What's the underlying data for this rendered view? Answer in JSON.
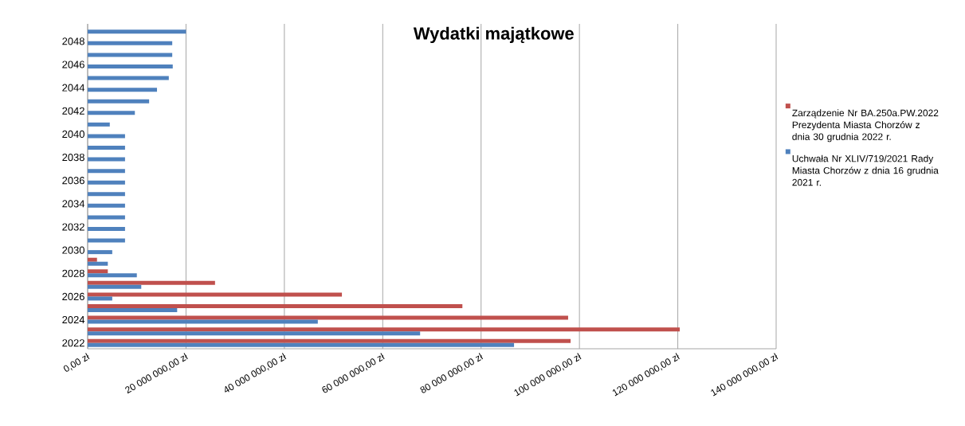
{
  "chart_data": {
    "type": "bar",
    "orientation": "horizontal",
    "title": "Wydatki majątkowe",
    "categories": [
      null,
      "2048",
      null,
      "2046",
      null,
      "2044",
      null,
      "2042",
      null,
      "2040",
      null,
      "2038",
      null,
      "2036",
      null,
      "2034",
      null,
      "2032",
      null,
      "2030",
      null,
      "2028",
      null,
      "2026",
      null,
      "2024",
      null,
      "2022"
    ],
    "series": [
      {
        "name": "Zarządzenie Nr BA.250a.PW.2022 Prezydenta Miasta Chorzów z dnia 30 grudnia 2022 r.",
        "color": "#c0504d",
        "values": [
          null,
          null,
          null,
          null,
          null,
          null,
          null,
          null,
          null,
          null,
          null,
          null,
          null,
          null,
          null,
          null,
          null,
          null,
          null,
          null,
          1900000,
          4100000,
          25900000,
          51700000,
          76200000,
          97700000,
          120400000,
          98200000
        ]
      },
      {
        "name": "Uchwała Nr XLIV/719/2021 Rady Miasta Chorzów z dnia 16 grudnia 2021 r.",
        "color": "#4f81bd",
        "values": [
          20000000,
          17200000,
          17200000,
          17300000,
          16500000,
          14100000,
          12500000,
          9600000,
          4500000,
          7600000,
          7600000,
          7600000,
          7600000,
          7600000,
          7600000,
          7600000,
          7600000,
          7600000,
          7600000,
          5000000,
          4100000,
          10000000,
          10900000,
          5000000,
          18200000,
          46800000,
          67600000,
          86700000
        ]
      }
    ],
    "xlim": [
      0,
      140000000
    ],
    "xticks": [
      {
        "value": 0,
        "label": "0,00 zł"
      },
      {
        "value": 20000000,
        "label": "20 000 000,00 zł"
      },
      {
        "value": 40000000,
        "label": "40 000 000,00 zł"
      },
      {
        "value": 60000000,
        "label": "60 000 000,00 zł"
      },
      {
        "value": 80000000,
        "label": "80 000 000,00 zł"
      },
      {
        "value": 100000000,
        "label": "100 000 000,00 zł"
      },
      {
        "value": 120000000,
        "label": "120 000 000,00 zł"
      },
      {
        "value": 140000000,
        "label": "140 000 000,00 zł"
      }
    ],
    "grid": "x",
    "legend": "right"
  }
}
